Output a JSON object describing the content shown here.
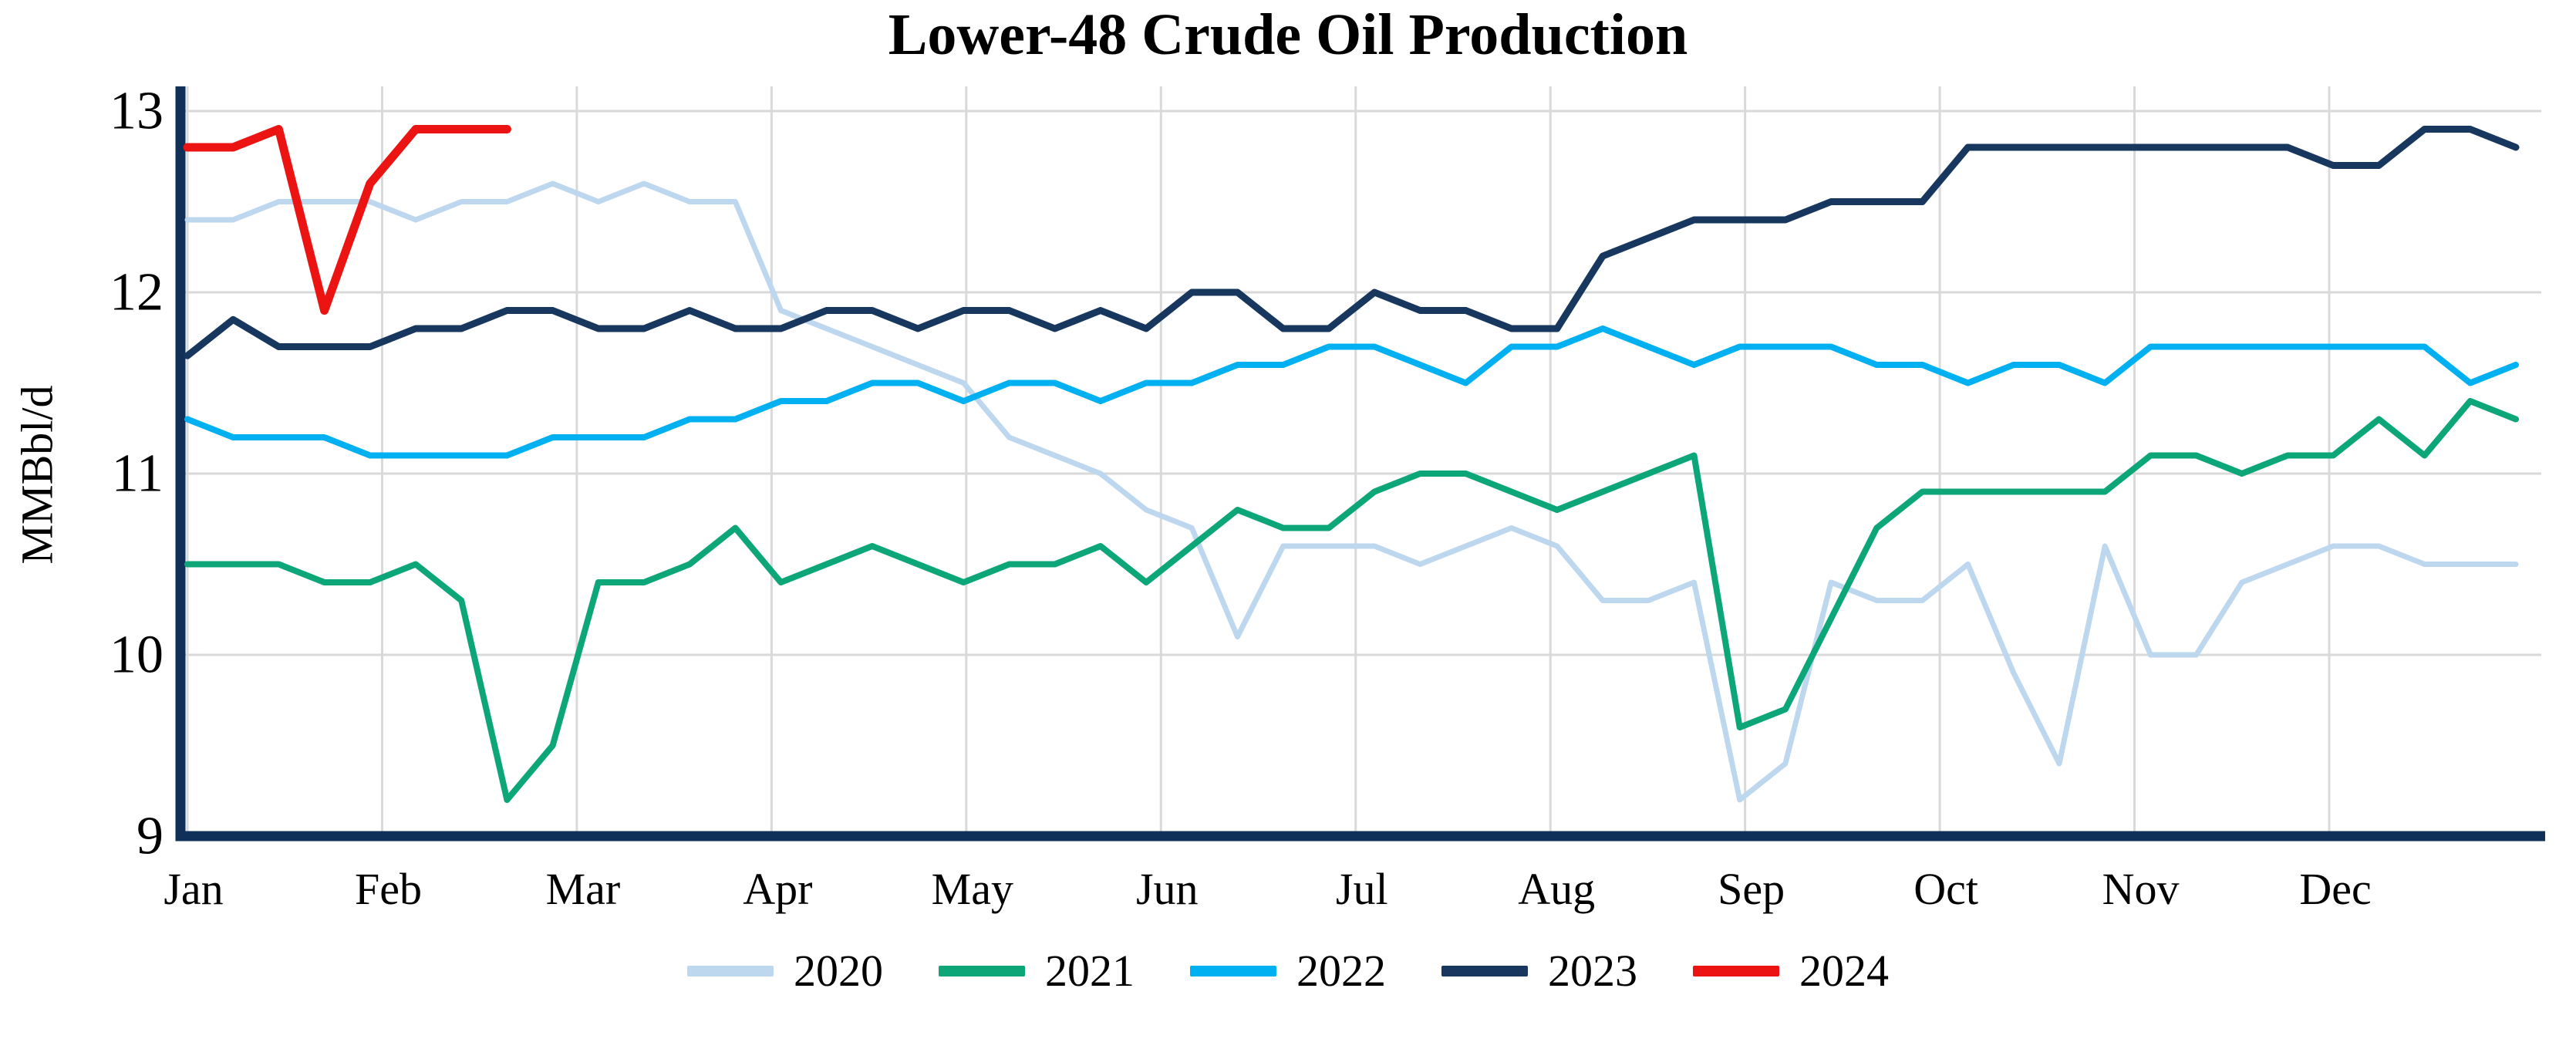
{
  "chart_data": {
    "type": "line",
    "title": "Lower-48 Crude Oil Production",
    "ylabel": "MMBbl/d",
    "xlabel": "",
    "x_tick_labels": [
      "Jan",
      "Feb",
      "Mar",
      "Apr",
      "May",
      "Jun",
      "Jul",
      "Aug",
      "Sep",
      "Oct",
      "Nov",
      "Dec"
    ],
    "y_ticks": [
      9,
      10,
      11,
      12,
      13
    ],
    "ylim": [
      9,
      13
    ],
    "x_unit": "weekly data, 52 points per year spanning Jan-Dec",
    "grid": true,
    "legend_position": "bottom",
    "colors": {
      "grid": "#D9D9D9",
      "axis": "#0F3058",
      "text": "#000000",
      "background": "#FFFFFF"
    },
    "series": [
      {
        "name": "2020",
        "color": "#BDD7EE",
        "values": [
          12.4,
          12.4,
          12.5,
          12.5,
          12.5,
          12.4,
          12.5,
          12.5,
          12.6,
          12.5,
          12.6,
          12.5,
          12.5,
          11.9,
          11.8,
          11.7,
          11.6,
          11.5,
          11.2,
          11.1,
          11.0,
          10.8,
          10.7,
          10.1,
          10.6,
          10.6,
          10.6,
          10.5,
          10.6,
          10.7,
          10.6,
          10.3,
          10.3,
          10.4,
          9.2,
          9.4,
          10.4,
          10.3,
          10.3,
          10.5,
          9.9,
          9.4,
          10.6,
          10.0,
          10.0,
          10.4,
          10.5,
          10.6,
          10.6,
          10.5,
          10.5,
          10.5
        ]
      },
      {
        "name": "2021",
        "color": "#0CA678",
        "values": [
          10.5,
          10.5,
          10.5,
          10.4,
          10.4,
          10.5,
          10.3,
          9.2,
          9.5,
          10.4,
          10.4,
          10.5,
          10.7,
          10.4,
          10.5,
          10.6,
          10.5,
          10.4,
          10.5,
          10.5,
          10.6,
          10.4,
          10.6,
          10.8,
          10.7,
          10.7,
          10.9,
          11.0,
          11.0,
          10.9,
          10.8,
          10.9,
          11.0,
          11.1,
          9.6,
          9.7,
          10.2,
          10.7,
          10.9,
          10.9,
          10.9,
          10.9,
          10.9,
          11.1,
          11.1,
          11.0,
          11.1,
          11.1,
          11.3,
          11.1,
          11.4,
          11.3
        ]
      },
      {
        "name": "2022",
        "color": "#00B0F0",
        "values": [
          11.3,
          11.2,
          11.2,
          11.2,
          11.1,
          11.1,
          11.1,
          11.1,
          11.2,
          11.2,
          11.2,
          11.3,
          11.3,
          11.4,
          11.4,
          11.5,
          11.5,
          11.4,
          11.5,
          11.5,
          11.4,
          11.5,
          11.5,
          11.6,
          11.6,
          11.7,
          11.7,
          11.6,
          11.5,
          11.7,
          11.7,
          11.8,
          11.7,
          11.6,
          11.7,
          11.7,
          11.7,
          11.6,
          11.6,
          11.5,
          11.6,
          11.6,
          11.5,
          11.7,
          11.7,
          11.7,
          11.7,
          11.7,
          11.7,
          11.7,
          11.5,
          11.6
        ]
      },
      {
        "name": "2023",
        "color": "#17375E",
        "values": [
          11.65,
          11.85,
          11.7,
          11.7,
          11.7,
          11.8,
          11.8,
          11.9,
          11.9,
          11.8,
          11.8,
          11.9,
          11.8,
          11.8,
          11.9,
          11.9,
          11.8,
          11.9,
          11.9,
          11.8,
          11.9,
          11.8,
          12.0,
          12.0,
          11.8,
          11.8,
          12.0,
          11.9,
          11.9,
          11.8,
          11.8,
          12.2,
          12.3,
          12.4,
          12.4,
          12.4,
          12.5,
          12.5,
          12.5,
          12.8,
          12.8,
          12.8,
          12.8,
          12.8,
          12.8,
          12.8,
          12.8,
          12.7,
          12.7,
          12.9,
          12.9,
          12.8
        ]
      },
      {
        "name": "2024",
        "color": "#EC1313",
        "values": [
          12.8,
          12.8,
          12.9,
          11.9,
          12.6,
          12.9,
          12.9,
          12.9
        ]
      }
    ]
  }
}
